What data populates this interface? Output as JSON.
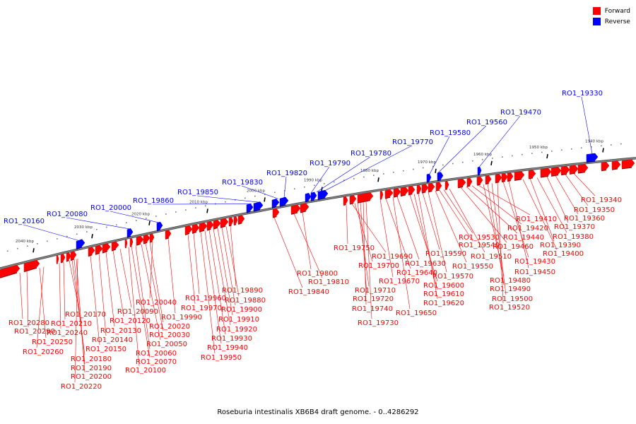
{
  "caption": "Roseburia intestinalis XB6B4 draft genome. - 0..4286292",
  "legend": [
    {
      "label": "Forward",
      "color": "#ff0000"
    },
    {
      "label": "Reverse",
      "color": "#0000ff"
    }
  ],
  "colors": {
    "forward": "#ff0000",
    "reverse": "#0000ff",
    "backbone": "#808080"
  },
  "ruler_labels": [
    "2040 kbp",
    "2030 kbp",
    "2020 kbp",
    "2010 kbp",
    "2000 kbp",
    "1990 kbp",
    "1980 kbp",
    "1970 kbp",
    "1960 kbp",
    "1950 kbp",
    "1940 kbp"
  ],
  "forward_labels": [
    "RO1_20280",
    "RO1_20290",
    "RO1_20250",
    "RO1_20260",
    "RO1_20240",
    "RO1_20210",
    "RO1_20170",
    "RO1_20180",
    "RO1_20190",
    "RO1_20200",
    "RO1_20220",
    "RO1_20150",
    "RO1_20140",
    "RO1_20130",
    "RO1_20120",
    "RO1_20090",
    "RO1_20100",
    "RO1_20070",
    "RO1_20060",
    "RO1_20050",
    "RO1_20030",
    "RO1_20020",
    "RO1_20040",
    "RO1_19990",
    "RO1_19970",
    "RO1_19960",
    "RO1_19950",
    "RO1_19940",
    "RO1_19930",
    "RO1_19920",
    "RO1_19910",
    "RO1_19900",
    "RO1_19880",
    "RO1_19890",
    "RO1_19840",
    "RO1_19810",
    "RO1_19800",
    "RO1_19750",
    "RO1_19690",
    "RO1_19700",
    "RO1_19710",
    "RO1_19720",
    "RO1_19740",
    "RO1_19730",
    "RO1_19670",
    "RO1_19640",
    "RO1_19650",
    "RO1_19630",
    "RO1_19600",
    "RO1_19610",
    "RO1_19620",
    "RO1_19590",
    "RO1_19570",
    "RO1_19550",
    "RO1_19540",
    "RO1_19530",
    "RO1_19510",
    "RO1_19460",
    "RO1_19440",
    "RO1_19420",
    "RO1_19410",
    "RO1_19480",
    "RO1_19490",
    "RO1_19500",
    "RO1_19520",
    "RO1_19430",
    "RO1_19450",
    "RO1_19400",
    "RO1_19390",
    "RO1_19380",
    "RO1_19370",
    "RO1_19360",
    "RO1_19350",
    "RO1_19340"
  ],
  "reverse_labels": [
    "RO1_20160",
    "RO1_20080",
    "RO1_20000",
    "RO1_19860",
    "RO1_19850",
    "RO1_19830",
    "RO1_19820",
    "RO1_19790",
    "RO1_19780",
    "RO1_19770",
    "RO1_19580",
    "RO1_19560",
    "RO1_19470",
    "RO1_19330"
  ]
}
